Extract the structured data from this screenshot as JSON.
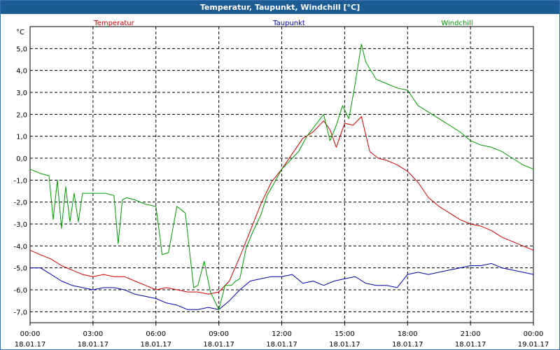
{
  "window": {
    "title": "Temperatur, Taupunkt, Windchill [°C]"
  },
  "chart_data": {
    "type": "line",
    "title": "Temperatur, Taupunkt, Windchill [°C]",
    "ylabel": "°C",
    "xlabel": "",
    "ylim": [
      -7.5,
      6.0
    ],
    "xlim": [
      0,
      24
    ],
    "grid": true,
    "legend_placement": "top",
    "y_ticks": [
      "5,0",
      "4,0",
      "3,0",
      "2,0",
      "1,0",
      "0,0",
      "-1,0",
      "-2,0",
      "-3,0",
      "-4,0",
      "-5,0",
      "-6,0",
      "-7,0"
    ],
    "y_tick_values": [
      5,
      4,
      3,
      2,
      1,
      0,
      -1,
      -2,
      -3,
      -4,
      -5,
      -6,
      -7
    ],
    "x_tick_values": [
      0,
      3,
      6,
      9,
      12,
      15,
      18,
      21,
      24
    ],
    "x_tick_times": [
      "00:00",
      "03:00",
      "06:00",
      "09:00",
      "12:00",
      "15:00",
      "18:00",
      "21:00",
      "00:00"
    ],
    "x_tick_dates": [
      "18.01.17",
      "18.01.17",
      "18.01.17",
      "18.01.17",
      "18.01.17",
      "18.01.17",
      "18.01.17",
      "18.01.17",
      "19.01.17"
    ],
    "series": [
      {
        "name": "Temperatur",
        "color": "#cc0000",
        "x": [
          0,
          0.5,
          1.0,
          1.5,
          2.0,
          2.5,
          3.0,
          3.5,
          4.0,
          4.5,
          5.0,
          5.5,
          6.0,
          6.5,
          7.0,
          7.5,
          8.0,
          8.5,
          9.0,
          9.5,
          10.0,
          10.5,
          11.0,
          11.5,
          12.0,
          12.5,
          13.0,
          13.5,
          14.0,
          14.3,
          14.6,
          15.0,
          15.4,
          15.8,
          16.2,
          16.6,
          17.0,
          17.5,
          18.0,
          18.5,
          19.0,
          19.5,
          20.0,
          20.5,
          21.0,
          21.5,
          22.0,
          22.5,
          23.0,
          23.5,
          24.0
        ],
        "values": [
          -4.2,
          -4.4,
          -4.6,
          -4.9,
          -5.1,
          -5.3,
          -5.4,
          -5.3,
          -5.4,
          -5.4,
          -5.6,
          -5.8,
          -6.0,
          -5.9,
          -6.0,
          -6.1,
          -6.1,
          -6.2,
          -6.1,
          -5.6,
          -4.5,
          -3.3,
          -2.1,
          -1.1,
          -0.5,
          0.2,
          0.9,
          1.2,
          1.7,
          1.3,
          0.5,
          1.6,
          1.5,
          1.9,
          0.3,
          0.0,
          -0.1,
          -0.3,
          -0.6,
          -1.1,
          -1.8,
          -2.2,
          -2.5,
          -2.8,
          -3.0,
          -3.1,
          -3.3,
          -3.6,
          -3.8,
          -4.0,
          -4.2
        ]
      },
      {
        "name": "Taupunkt",
        "color": "#0000aa",
        "x": [
          0,
          0.5,
          1.0,
          1.5,
          2.0,
          2.5,
          3.0,
          3.5,
          4.0,
          4.5,
          5.0,
          5.5,
          6.0,
          6.5,
          7.0,
          7.5,
          8.0,
          8.5,
          9.0,
          9.5,
          10.0,
          10.5,
          11.0,
          11.5,
          12.0,
          12.5,
          13.0,
          13.5,
          14.0,
          14.5,
          15.0,
          15.5,
          16.0,
          16.5,
          17.0,
          17.5,
          18.0,
          18.5,
          19.0,
          19.5,
          20.0,
          20.5,
          21.0,
          21.5,
          22.0,
          22.5,
          23.0,
          23.5,
          24.0
        ],
        "values": [
          -5.0,
          -5.0,
          -5.3,
          -5.6,
          -5.8,
          -5.9,
          -6.0,
          -5.9,
          -5.9,
          -6.0,
          -6.2,
          -6.3,
          -6.4,
          -6.6,
          -6.7,
          -6.9,
          -6.9,
          -6.8,
          -6.9,
          -6.5,
          -6.0,
          -5.6,
          -5.5,
          -5.4,
          -5.4,
          -5.3,
          -5.7,
          -5.6,
          -5.8,
          -5.6,
          -5.5,
          -5.4,
          -5.7,
          -5.8,
          -5.8,
          -5.9,
          -5.3,
          -5.2,
          -5.3,
          -5.2,
          -5.1,
          -5.0,
          -4.9,
          -4.9,
          -4.8,
          -5.0,
          -5.1,
          -5.2,
          -5.3
        ]
      },
      {
        "name": "Windchill",
        "color": "#009900",
        "x": [
          0,
          0.5,
          0.9,
          1.1,
          1.3,
          1.5,
          1.7,
          1.9,
          2.1,
          2.3,
          2.5,
          2.8,
          3.2,
          3.6,
          4.0,
          4.2,
          4.4,
          4.6,
          5.0,
          5.5,
          6.0,
          6.3,
          6.6,
          7.0,
          7.4,
          7.8,
          8.0,
          8.3,
          8.6,
          9.0,
          9.3,
          9.6,
          9.8,
          10.0,
          10.3,
          10.6,
          11.0,
          11.3,
          11.6,
          12.0,
          12.4,
          12.8,
          13.2,
          13.6,
          14.0,
          14.3,
          14.6,
          14.9,
          15.2,
          15.5,
          15.8,
          16.0,
          16.5,
          17.0,
          17.5,
          18.0,
          18.5,
          19.0,
          19.5,
          20.0,
          20.5,
          21.0,
          21.5,
          22.0,
          22.5,
          23.0,
          23.5,
          24.0
        ],
        "values": [
          -0.5,
          -0.7,
          -0.8,
          -2.8,
          -1.0,
          -3.2,
          -1.3,
          -2.9,
          -1.6,
          -2.9,
          -1.6,
          -1.6,
          -1.6,
          -1.6,
          -1.7,
          -3.9,
          -1.9,
          -1.8,
          -1.9,
          -2.1,
          -2.2,
          -4.4,
          -4.3,
          -2.2,
          -2.5,
          -5.9,
          -5.8,
          -4.7,
          -6.1,
          -6.9,
          -5.8,
          -5.8,
          -5.6,
          -5.5,
          -4.1,
          -3.4,
          -2.6,
          -1.7,
          -1.2,
          -0.5,
          -0.1,
          0.3,
          1.0,
          1.5,
          2.0,
          0.8,
          1.5,
          2.4,
          1.8,
          3.4,
          5.2,
          4.4,
          3.6,
          3.4,
          3.2,
          3.1,
          2.4,
          2.1,
          1.8,
          1.5,
          1.2,
          0.8,
          0.6,
          0.5,
          0.3,
          0.0,
          -0.3,
          -0.5
        ]
      }
    ]
  }
}
